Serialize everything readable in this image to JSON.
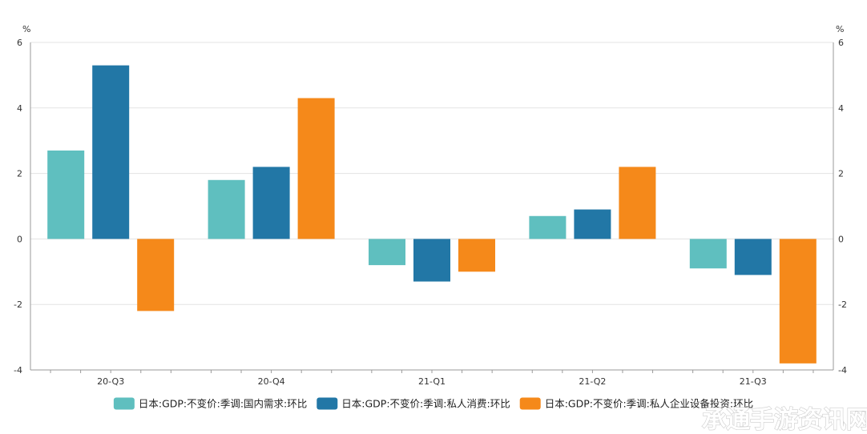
{
  "chart_data": {
    "type": "bar",
    "title": "",
    "xlabel": "",
    "ylabel": "%",
    "y2label": "%",
    "ylim": [
      -4,
      6
    ],
    "yticks": [
      -4,
      -2,
      0,
      2,
      4,
      6
    ],
    "grid": true,
    "legend_position": "bottom",
    "categories": [
      "20-Q3",
      "20-Q4",
      "21-Q1",
      "21-Q2",
      "21-Q3"
    ],
    "series": [
      {
        "name": "日本:GDP:不变价:季调:国内需求:环比",
        "color": "#5fbfbf",
        "values": [
          2.7,
          1.8,
          -0.8,
          0.7,
          -0.9
        ]
      },
      {
        "name": "日本:GDP:不变价:季调:私人消费:环比",
        "color": "#2277a6",
        "values": [
          5.3,
          2.2,
          -1.3,
          0.9,
          -1.1
        ]
      },
      {
        "name": "日本:GDP:不变价:季调:私人企业设备投资:环比",
        "color": "#f5891a",
        "values": [
          -2.2,
          4.3,
          -1.0,
          2.2,
          -3.8
        ]
      }
    ]
  },
  "watermark": {
    "text": "承通手游资讯网"
  }
}
